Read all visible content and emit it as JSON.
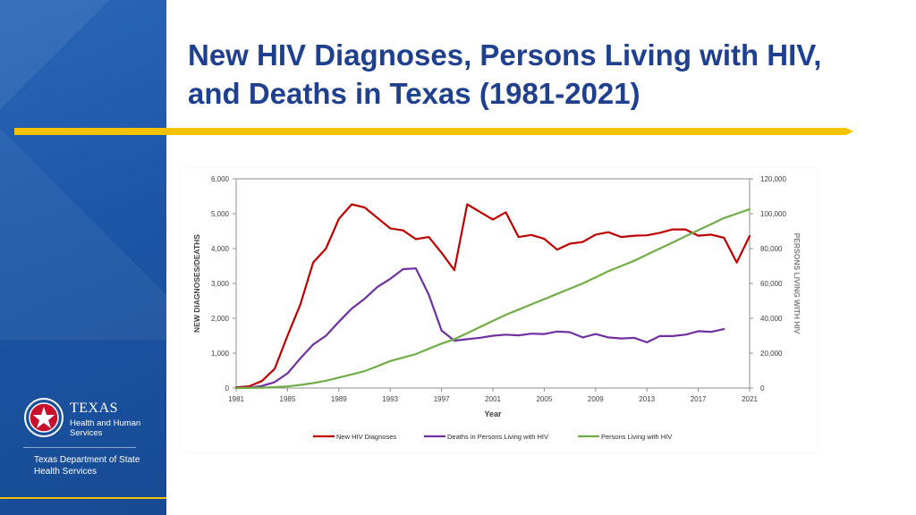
{
  "slide": {
    "title": "New HIV Diagnoses, Persons Living with HIV, and Deaths in Texas (1981-2021)"
  },
  "branding": {
    "org_name": "TEXAS",
    "org_sub_line1": "Health and Human",
    "org_sub_line2": "Services",
    "dept_line1": "Texas Department of State",
    "dept_line2": "Health Services"
  },
  "colors": {
    "title": "#1f3f8f",
    "accent_bar": "#f5c200",
    "sidebar": "#1d56a6",
    "new_dx": "#c00000",
    "deaths": "#7030a0",
    "plwh": "#70ad47"
  },
  "chart_data": {
    "type": "line",
    "title": "",
    "xlabel": "Year",
    "ylabel_left": "NEW DIAGNOSES/DEATHS",
    "ylabel_right": "PERSONS LIVING WITH HIV",
    "xlim": [
      1981,
      2021
    ],
    "ylim_left": [
      0,
      6000
    ],
    "ylim_right": [
      0,
      120000
    ],
    "x_ticks": [
      1981,
      1985,
      1989,
      1993,
      1997,
      2001,
      2005,
      2009,
      2013,
      2017,
      2021
    ],
    "y_ticks_left": [
      "0",
      "1,000",
      "2,000",
      "3,000",
      "4,000",
      "5,000",
      "6,000"
    ],
    "y_ticks_right": [
      "0",
      "20,000",
      "40,000",
      "60,000",
      "80,000",
      "100,000",
      "120,000"
    ],
    "legend_position": "bottom",
    "series": [
      {
        "name": "New HIV Diagnoses",
        "axis": "left",
        "color": "#c00000",
        "x": [
          1981,
          1982,
          1983,
          1984,
          1985,
          1986,
          1987,
          1988,
          1989,
          1990,
          1991,
          1992,
          1993,
          1994,
          1995,
          1996,
          1997,
          1998,
          1999,
          2000,
          2001,
          2002,
          2003,
          2004,
          2005,
          2006,
          2007,
          2008,
          2009,
          2010,
          2011,
          2012,
          2013,
          2014,
          2015,
          2016,
          2017,
          2018,
          2019,
          2020,
          2021
        ],
        "values": [
          20,
          50,
          200,
          550,
          1500,
          2400,
          3600,
          4000,
          4850,
          5270,
          5180,
          4880,
          4580,
          4520,
          4270,
          4330,
          3880,
          3380,
          5270,
          5050,
          4830,
          5040,
          4330,
          4390,
          4280,
          3970,
          4140,
          4190,
          4400,
          4470,
          4330,
          4370,
          4380,
          4450,
          4550,
          4550,
          4370,
          4400,
          4310,
          3600,
          4360
        ]
      },
      {
        "name": "Deaths in Persons Living with HIV",
        "axis": "left",
        "color": "#7030a0",
        "x": [
          1981,
          1982,
          1983,
          1984,
          1985,
          1986,
          1987,
          1988,
          1989,
          1990,
          1991,
          1992,
          1993,
          1994,
          1995,
          1996,
          1997,
          1998,
          1999,
          2000,
          2001,
          2002,
          2003,
          2004,
          2005,
          2006,
          2007,
          2008,
          2009,
          2010,
          2011,
          2012,
          2013,
          2014,
          2015,
          2016,
          2017,
          2018,
          2019
        ],
        "values": [
          0,
          10,
          60,
          170,
          420,
          850,
          1250,
          1500,
          1900,
          2280,
          2560,
          2900,
          3130,
          3410,
          3430,
          2680,
          1650,
          1360,
          1400,
          1440,
          1500,
          1530,
          1510,
          1560,
          1550,
          1620,
          1600,
          1450,
          1550,
          1450,
          1420,
          1440,
          1310,
          1490,
          1490,
          1530,
          1630,
          1610,
          1690
        ]
      },
      {
        "name": "Persons Living with HIV",
        "axis": "right",
        "color": "#70ad47",
        "x": [
          1981,
          1982,
          1983,
          1984,
          1985,
          1986,
          1987,
          1988,
          1989,
          1990,
          1991,
          1992,
          1993,
          1994,
          1995,
          1996,
          1997,
          1998,
          1999,
          2000,
          2001,
          2002,
          2003,
          2004,
          2005,
          2006,
          2007,
          2008,
          2009,
          2010,
          2011,
          2012,
          2013,
          2014,
          2015,
          2016,
          2017,
          2018,
          2019,
          2020,
          2021
        ],
        "values": [
          0,
          50,
          200,
          500,
          900,
          1800,
          2800,
          4200,
          6000,
          7800,
          9700,
          12500,
          15500,
          17500,
          19500,
          22500,
          25500,
          28000,
          31500,
          35000,
          38500,
          42000,
          45000,
          48000,
          51000,
          54000,
          57000,
          60000,
          63500,
          67000,
          70000,
          73000,
          76500,
          80000,
          83500,
          87000,
          90500,
          94000,
          97500,
          100000,
          102500
        ]
      }
    ]
  }
}
